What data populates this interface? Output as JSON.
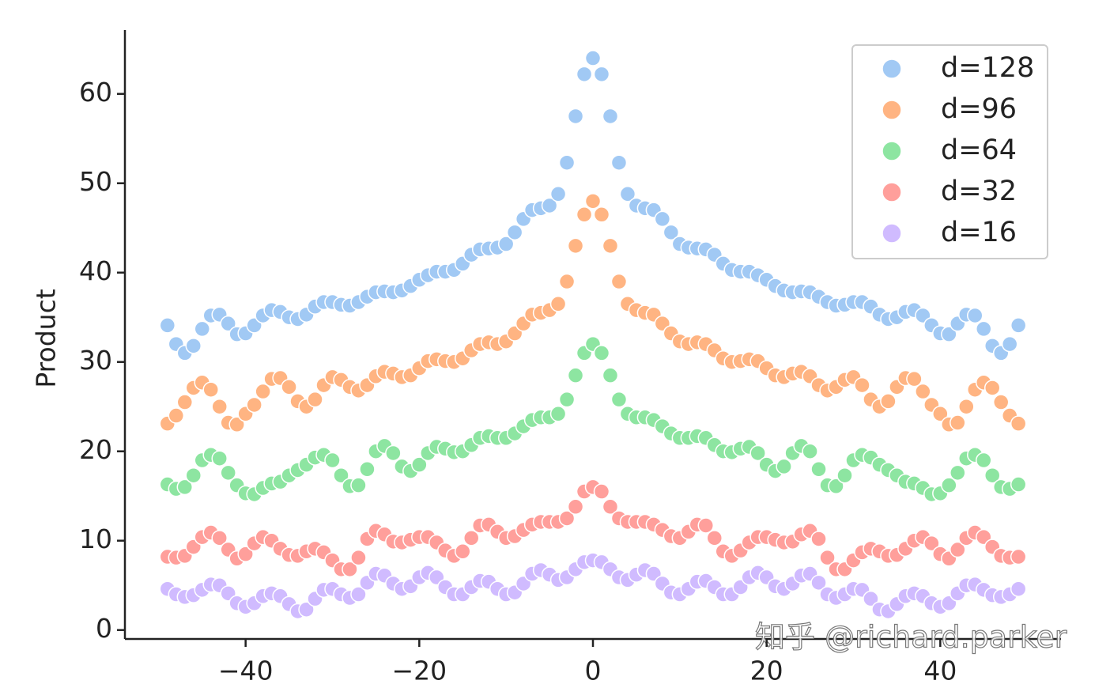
{
  "chart_data": {
    "type": "scatter",
    "y_label": "Product",
    "watermark": "知乎 @richard.parker",
    "legend": "upper right",
    "grid": false,
    "xlim": [
      -53.9,
      53.9
    ],
    "ylim": [
      -1,
      67.1
    ],
    "xticks": [
      {
        "value": -40,
        "label": "−40"
      },
      {
        "value": -20,
        "label": "−20"
      },
      0,
      20,
      40
    ],
    "yticks": [
      0,
      10,
      20,
      30,
      40,
      50,
      60
    ],
    "x": [
      -49,
      -48,
      -47,
      -46,
      -45,
      -44,
      -43,
      -42,
      -41,
      -40,
      -39,
      -38,
      -37,
      -36,
      -35,
      -34,
      -33,
      -32,
      -31,
      -30,
      -29,
      -28,
      -27,
      -26,
      -25,
      -24,
      -23,
      -22,
      -21,
      -20,
      -19,
      -18,
      -17,
      -16,
      -15,
      -14,
      -13,
      -12,
      -11,
      -10,
      -9,
      -8,
      -7,
      -6,
      -5,
      -4,
      -3,
      -2,
      -1,
      0,
      1,
      2,
      3,
      4,
      5,
      6,
      7,
      8,
      9,
      10,
      11,
      12,
      13,
      14,
      15,
      16,
      17,
      18,
      19,
      20,
      21,
      22,
      23,
      24,
      25,
      26,
      27,
      28,
      29,
      30,
      31,
      32,
      33,
      34,
      35,
      36,
      37,
      38,
      39,
      40,
      41,
      42,
      43,
      44,
      45,
      46,
      47,
      48,
      49
    ],
    "series": [
      {
        "name": "d=128",
        "color": "#a1c9f4",
        "values": [
          34.1,
          32,
          31,
          31.8,
          33.7,
          35.2,
          35.3,
          34.3,
          33.1,
          33.2,
          34.1,
          35.2,
          35.8,
          35.6,
          35,
          34.8,
          35.3,
          36.2,
          36.7,
          36.7,
          36.4,
          36.3,
          36.7,
          37.3,
          37.8,
          37.9,
          37.8,
          38,
          38.5,
          39.2,
          39.7,
          40.1,
          40.1,
          40.3,
          41,
          42,
          42.6,
          42.7,
          42.8,
          43.2,
          44.5,
          46,
          47,
          47.2,
          47.5,
          48.8,
          52.3,
          57.5,
          62.2,
          64,
          62.2,
          57.5,
          52.3,
          48.8,
          47.5,
          47.2,
          47,
          46,
          44.5,
          43.2,
          42.8,
          42.7,
          42.6,
          42,
          41,
          40.3,
          40.1,
          40.1,
          39.7,
          39.2,
          38.5,
          38,
          37.8,
          37.9,
          37.8,
          37.3,
          36.7,
          36.3,
          36.4,
          36.7,
          36.7,
          36.2,
          35.3,
          34.8,
          35,
          35.6,
          35.8,
          35.2,
          34.1,
          33.2,
          33.1,
          34.3,
          35.3,
          35.2,
          33.7,
          31.8,
          31,
          32,
          34.1
        ]
      },
      {
        "name": "d=96",
        "color": "#ffb482",
        "values": [
          23.1,
          24,
          25.5,
          27.1,
          27.7,
          26.9,
          25,
          23.2,
          23,
          24.2,
          25.2,
          26.7,
          28.1,
          28.2,
          27.2,
          25.6,
          25,
          25.8,
          27.4,
          28.3,
          28,
          27.2,
          26.8,
          27.4,
          28.4,
          28.9,
          28.7,
          28.3,
          28.5,
          29.3,
          30.1,
          30.3,
          30.1,
          30,
          30.4,
          31.3,
          32,
          32.2,
          32,
          32.3,
          33.2,
          34.3,
          35.3,
          35.5,
          35.8,
          36.5,
          39,
          43,
          46.5,
          48,
          46.5,
          43,
          39,
          36.5,
          35.8,
          35.5,
          35.3,
          34.3,
          33.2,
          32.3,
          32,
          32.2,
          32,
          31.3,
          30.4,
          30,
          30.1,
          30.3,
          30.1,
          29.3,
          28.5,
          28.3,
          28.7,
          28.9,
          28.4,
          27.4,
          26.8,
          27.2,
          28,
          28.3,
          27.4,
          25.8,
          25,
          25.6,
          27.2,
          28.2,
          28.1,
          26.7,
          25.2,
          24.2,
          23,
          23.2,
          25,
          26.9,
          27.7,
          27.1,
          25.5,
          24,
          23.1
        ]
      },
      {
        "name": "d=64",
        "color": "#8de5a1",
        "values": [
          16.3,
          15.8,
          16,
          17.3,
          19,
          19.6,
          19.2,
          17.6,
          16.2,
          15.3,
          15.2,
          15.9,
          16.4,
          16.6,
          17.3,
          17.9,
          18.5,
          19.3,
          19.6,
          19,
          17.3,
          16.1,
          16.2,
          18,
          20,
          20.6,
          19.8,
          18.3,
          17.8,
          18.5,
          19.8,
          20.5,
          20.3,
          19.9,
          20,
          20.7,
          21.5,
          21.7,
          21.5,
          21.5,
          22,
          22.8,
          23.5,
          23.8,
          23.8,
          24.2,
          25.8,
          28.5,
          31,
          32,
          31,
          28.5,
          25.8,
          24.2,
          23.8,
          23.8,
          23.5,
          22.8,
          22,
          21.5,
          21.5,
          21.7,
          21.5,
          20.7,
          20,
          19.9,
          20.3,
          20.5,
          19.8,
          18.5,
          17.8,
          18.3,
          19.8,
          20.6,
          20,
          18,
          16.2,
          16.1,
          17.3,
          19,
          19.6,
          19.3,
          18.5,
          17.9,
          17.3,
          16.6,
          16.4,
          15.9,
          15.2,
          15.3,
          16.2,
          17.6,
          19.2,
          19.6,
          19,
          17.3,
          16,
          15.8,
          16.3
        ]
      },
      {
        "name": "d=32",
        "color": "#ff9f9b",
        "values": [
          8.2,
          8.1,
          8.3,
          9.3,
          10.4,
          10.9,
          10.3,
          9,
          8,
          8.5,
          9.7,
          10.4,
          10,
          9.1,
          8.4,
          8.3,
          8.8,
          9.1,
          8.7,
          7.8,
          6.8,
          6.8,
          8.1,
          10.2,
          11.1,
          10.7,
          9.9,
          9.8,
          10.1,
          10.4,
          10.4,
          9.8,
          8.9,
          8.3,
          8.8,
          10.3,
          11.7,
          11.8,
          11,
          10.3,
          10.5,
          11.2,
          11.8,
          12.1,
          12.1,
          12.1,
          12.5,
          13.8,
          15.5,
          16,
          15.5,
          13.8,
          12.5,
          12.1,
          12.1,
          12.1,
          11.8,
          11.2,
          10.5,
          10.3,
          11,
          11.8,
          11.7,
          10.3,
          8.8,
          8.3,
          8.9,
          9.8,
          10.4,
          10.4,
          10.1,
          9.8,
          9.9,
          10.7,
          11.1,
          10.2,
          8.1,
          6.8,
          6.8,
          7.8,
          8.7,
          9.1,
          8.8,
          8.3,
          8.4,
          9.1,
          10,
          10.4,
          9.7,
          8.5,
          8,
          9,
          10.3,
          10.9,
          10.4,
          9.3,
          8.3,
          8.1,
          8.2
        ]
      },
      {
        "name": "d=16",
        "color": "#d0bbff",
        "values": [
          4.6,
          4,
          3.7,
          3.9,
          4.5,
          5.1,
          5,
          4.1,
          3,
          2.6,
          3,
          3.8,
          4.1,
          3.8,
          2.9,
          2.1,
          2.3,
          3.5,
          4.5,
          4.6,
          4,
          3.6,
          4,
          5.3,
          6.3,
          6.1,
          5.2,
          4.6,
          4.9,
          5.9,
          6.4,
          5.9,
          4.8,
          4,
          4,
          4.8,
          5.5,
          5.4,
          4.6,
          4,
          4.2,
          5.2,
          6.3,
          6.7,
          6.2,
          5.6,
          5.9,
          6.8,
          7.6,
          7.8,
          7.6,
          6.8,
          5.9,
          5.6,
          6.2,
          6.7,
          6.3,
          5.2,
          4.2,
          4,
          4.6,
          5.4,
          5.5,
          4.8,
          4,
          4,
          4.8,
          5.9,
          6.4,
          5.9,
          4.9,
          4.6,
          5.2,
          6.1,
          6.3,
          5.3,
          4,
          3.6,
          4,
          4.6,
          4.5,
          3.5,
          2.3,
          2.1,
          2.9,
          3.8,
          4.1,
          3.8,
          3,
          2.6,
          3,
          4.1,
          5,
          5.1,
          4.5,
          3.9,
          3.7,
          4,
          4.6
        ]
      }
    ]
  }
}
